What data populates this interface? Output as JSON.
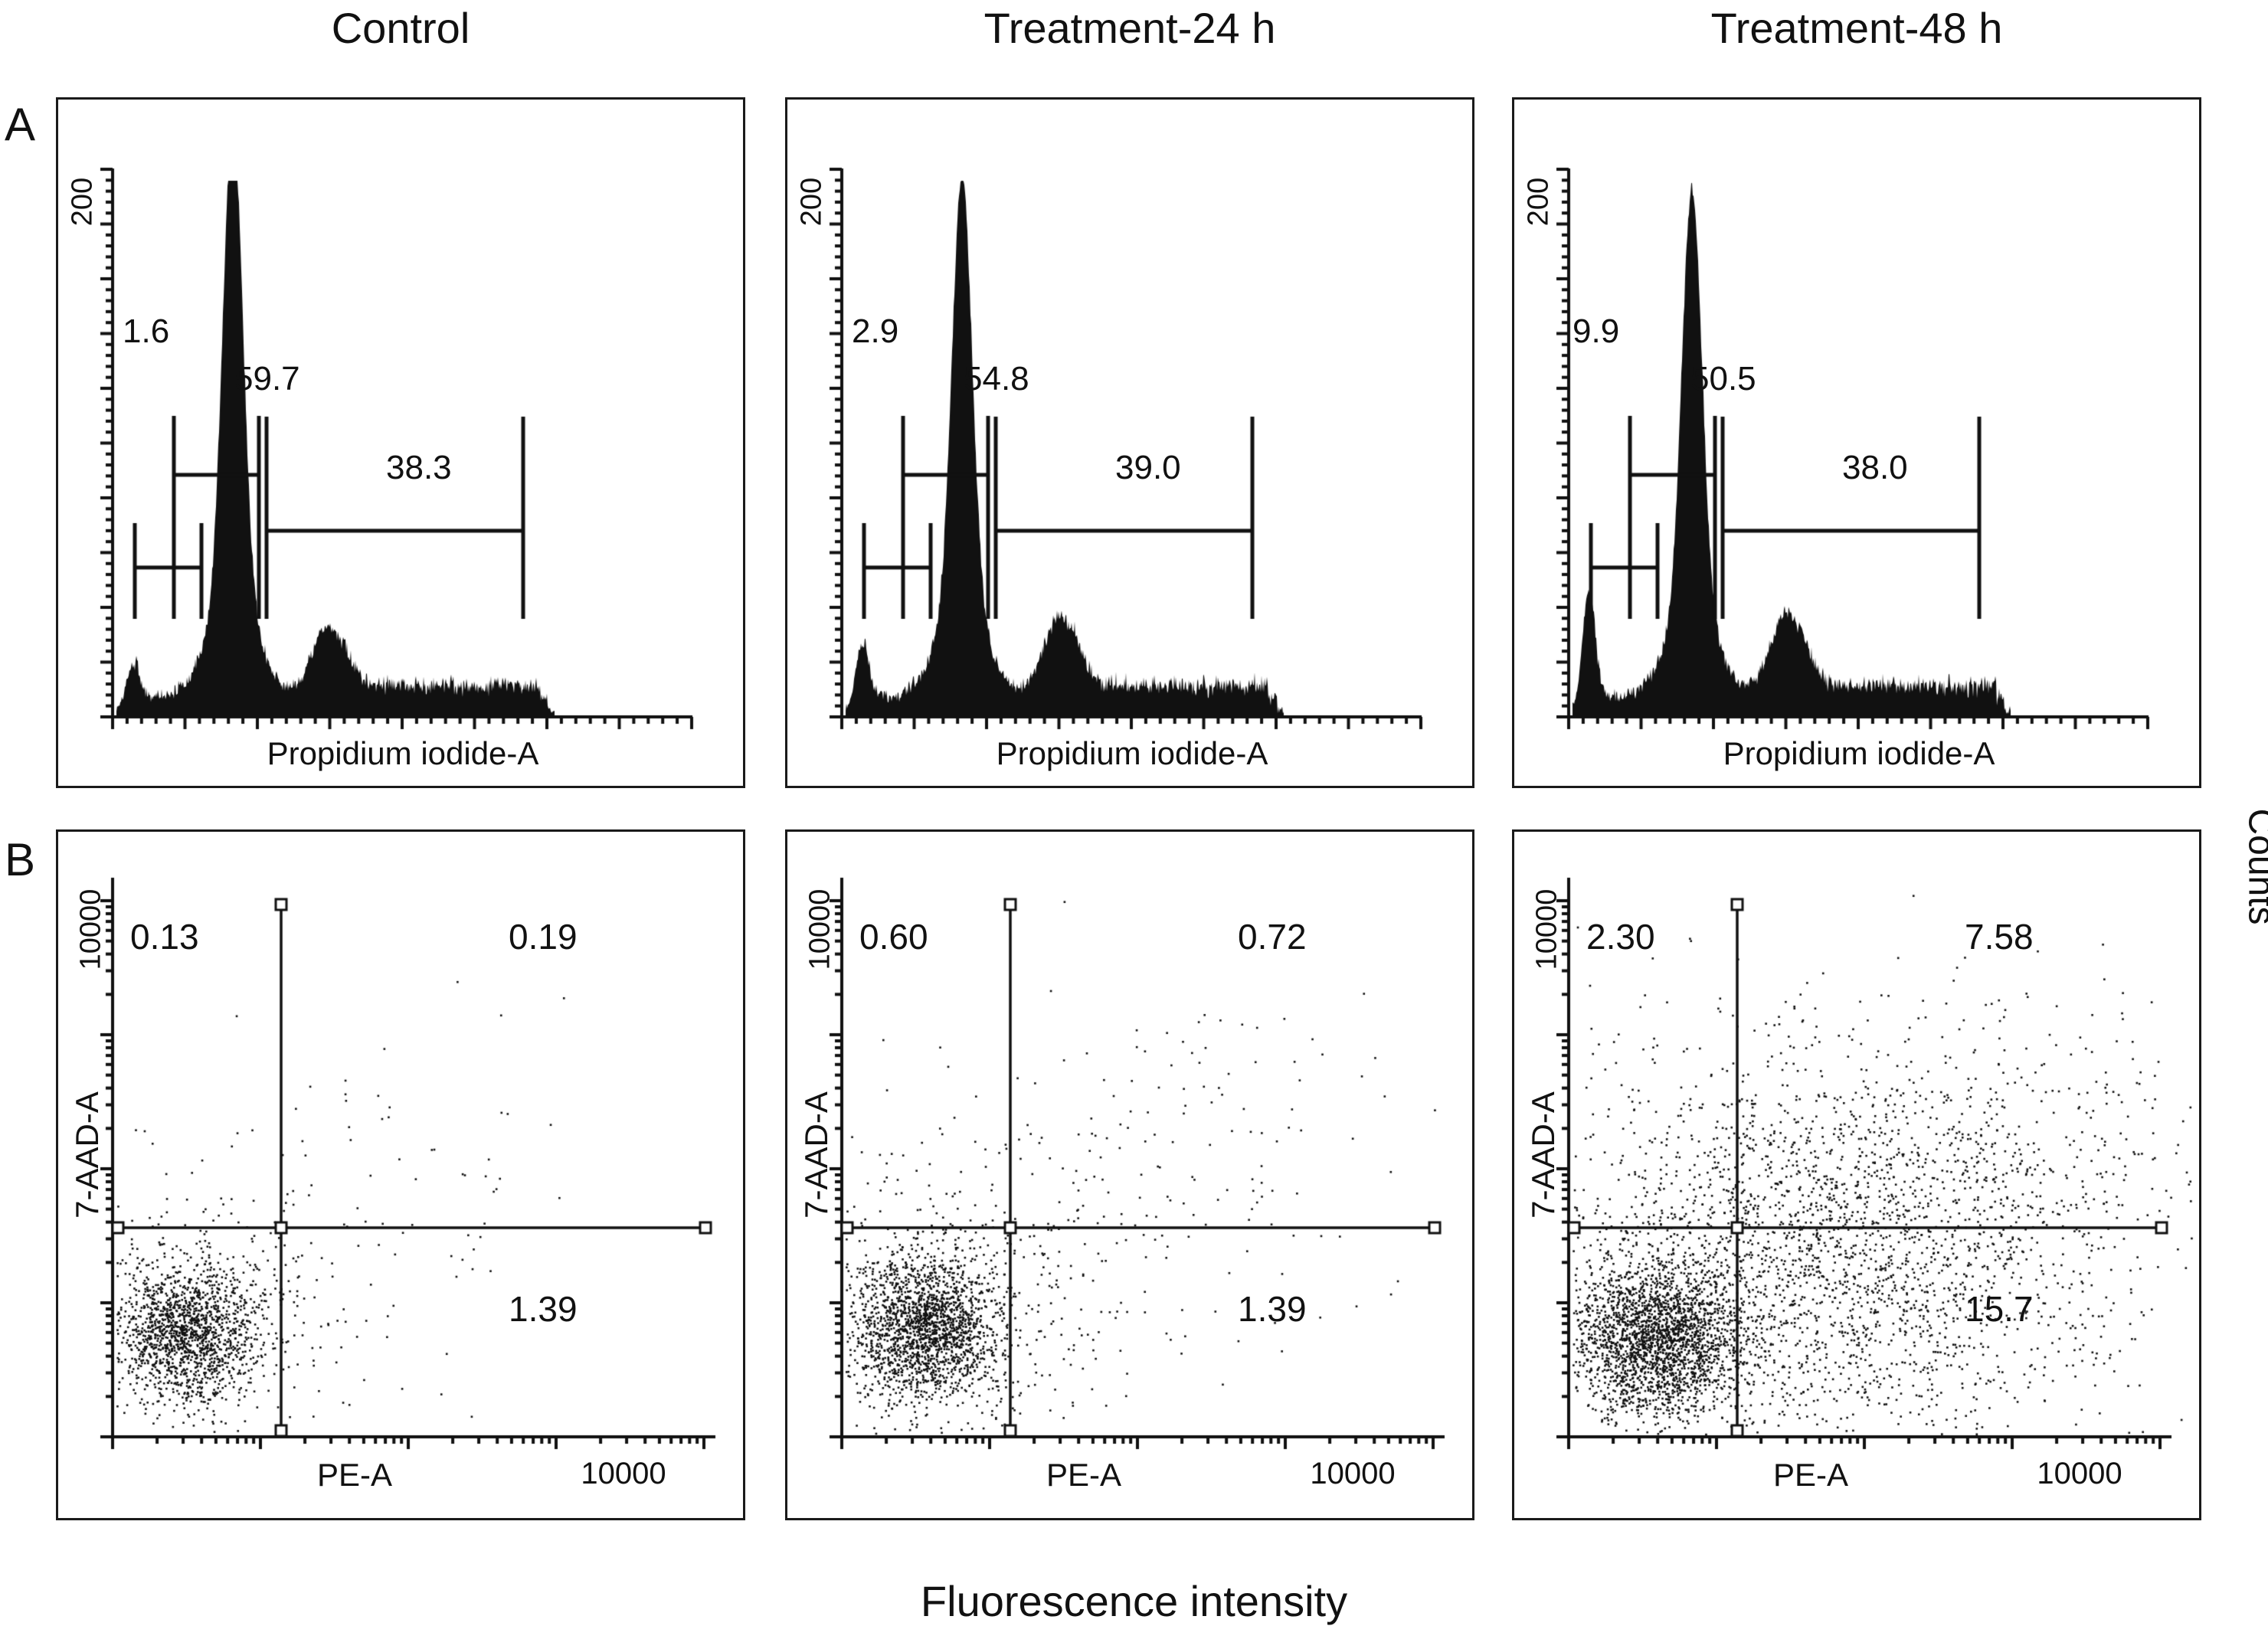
{
  "figure": {
    "row_labels": [
      "A",
      "B"
    ],
    "columns": [
      "Control",
      "Treatment-24 h",
      "Treatment-48 h"
    ],
    "bottom_label": "Fluorescence intensity",
    "right_axis_label": "Counts",
    "ink_color": "#111111",
    "background_color": "#ffffff"
  },
  "chart_data": [
    {
      "type": "histogram",
      "row": "A",
      "condition": "Control",
      "xlabel": "Propidium iodide-A",
      "ylabel": "Counts",
      "ytick_label": "200",
      "gates": {
        "sub_g1": "1.6",
        "g0_g1": "59.7",
        "s_g2_m": "38.3"
      }
    },
    {
      "type": "histogram",
      "row": "A",
      "condition": "Treatment-24 h",
      "xlabel": "Propidium iodide-A",
      "ylabel": "Counts",
      "ytick_label": "200",
      "gates": {
        "sub_g1": "2.9",
        "g0_g1": "54.8",
        "s_g2_m": "39.0"
      }
    },
    {
      "type": "histogram",
      "row": "A",
      "condition": "Treatment-48 h",
      "xlabel": "Propidium iodide-A",
      "ylabel": "Counts",
      "ytick_label": "200",
      "gates": {
        "sub_g1": "9.9",
        "g0_g1": "50.5",
        "s_g2_m": "38.0"
      }
    },
    {
      "type": "scatter",
      "row": "B",
      "condition": "Control",
      "xlabel": "PE-A",
      "ylabel": "7-AAD-A",
      "x_max_label": "10000",
      "y_max_label": "10000",
      "quadrants": {
        "upper_left": "0.13",
        "upper_right": "0.19",
        "lower_right": "1.39"
      }
    },
    {
      "type": "scatter",
      "row": "B",
      "condition": "Treatment-24 h",
      "xlabel": "PE-A",
      "ylabel": "7-AAD-A",
      "x_max_label": "10000",
      "y_max_label": "10000",
      "quadrants": {
        "upper_left": "0.60",
        "upper_right": "0.72",
        "lower_right": "1.39"
      }
    },
    {
      "type": "scatter",
      "row": "B",
      "condition": "Treatment-48 h",
      "xlabel": "PE-A",
      "ylabel": "7-AAD-A",
      "x_max_label": "10000",
      "y_max_label": "10000",
      "quadrants": {
        "upper_left": "2.30",
        "upper_right": "7.58",
        "lower_right": "15.7"
      }
    }
  ]
}
